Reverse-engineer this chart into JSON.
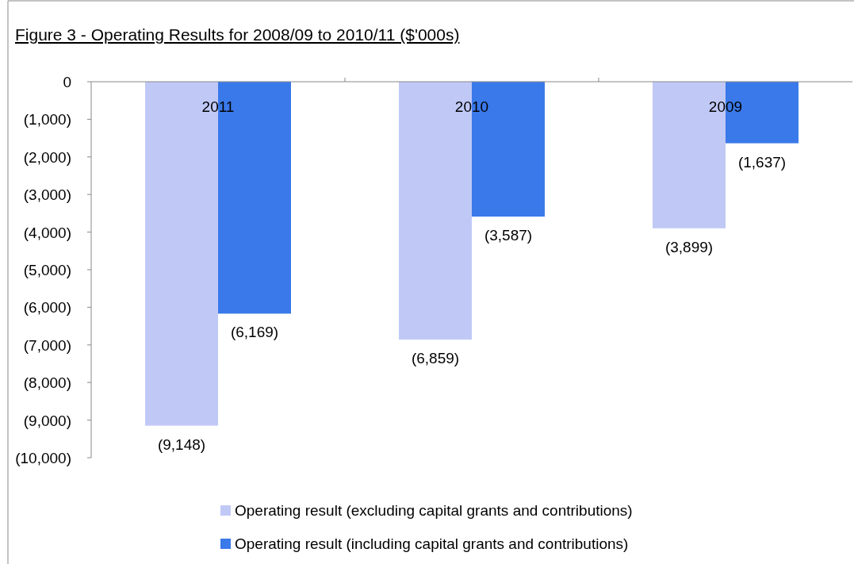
{
  "chart_data": {
    "type": "bar",
    "title": "Figure 3 - Operating Results for 2008/09 to 2010/11 ($'000s)",
    "categories": [
      "2011",
      "2010",
      "2009"
    ],
    "series": [
      {
        "name": "Operating result (excluding capital grants and contributions)",
        "color": "#c0c9f6",
        "values": [
          -9148,
          -6859,
          -3899
        ],
        "value_labels": [
          "(9,148)",
          "(6,859)",
          "(3,899)"
        ]
      },
      {
        "name": "Operating result (including capital grants and contributions)",
        "color": "#3a79e9",
        "values": [
          -6169,
          -3587,
          -1637
        ],
        "value_labels": [
          "(6,169)",
          "(3,587)",
          "(1,637)"
        ]
      }
    ],
    "ylim": [
      -10000,
      0
    ],
    "yticks": [
      {
        "value": 0,
        "label": "0"
      },
      {
        "value": -1000,
        "label": "(1,000)"
      },
      {
        "value": -2000,
        "label": "(2,000)"
      },
      {
        "value": -3000,
        "label": "(3,000)"
      },
      {
        "value": -4000,
        "label": "(4,000)"
      },
      {
        "value": -5000,
        "label": "(5,000)"
      },
      {
        "value": -6000,
        "label": "(6,000)"
      },
      {
        "value": -7000,
        "label": "(7,000)"
      },
      {
        "value": -8000,
        "label": "(8,000)"
      },
      {
        "value": -9000,
        "label": "(9,000)"
      },
      {
        "value": -10000,
        "label": "(10,000)"
      }
    ],
    "grid": false,
    "legend": "bottom"
  }
}
